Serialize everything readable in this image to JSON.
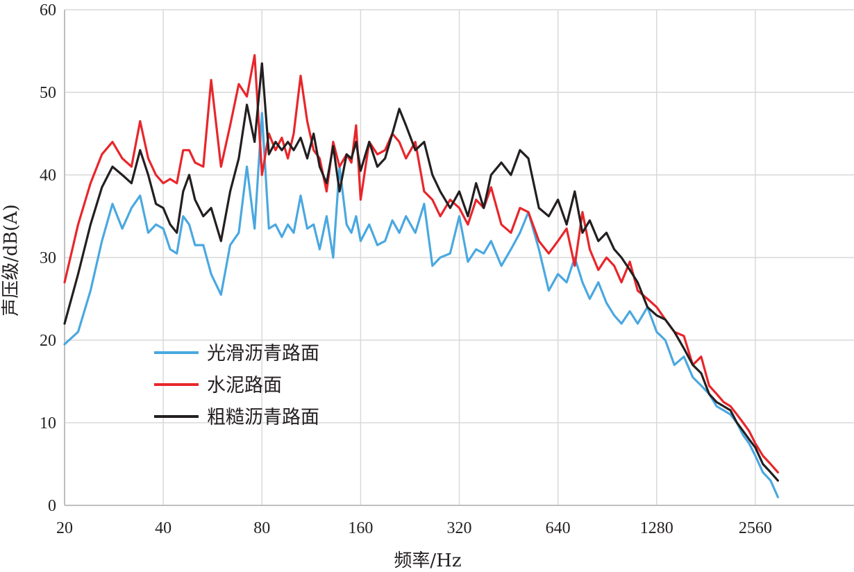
{
  "chart_data": {
    "type": "line",
    "title": "",
    "xlabel": "频率/Hz",
    "ylabel": "声压级/dB(A)",
    "xscale": "log2",
    "xlim": [
      20,
      5120
    ],
    "ylim": [
      0,
      60
    ],
    "x_ticks": [
      20,
      40,
      80,
      160,
      320,
      640,
      1280,
      2560
    ],
    "x_tick_labels": [
      "20",
      "40",
      "80",
      "160",
      "320",
      "640",
      "1280",
      "2560"
    ],
    "y_ticks": [
      0,
      10,
      20,
      30,
      40,
      50,
      60
    ],
    "y_tick_labels": [
      "0",
      "10",
      "20",
      "30",
      "40",
      "50",
      "60"
    ],
    "grid": true,
    "legend_position": "lower-left",
    "series": [
      {
        "name": "光滑沥青路面",
        "color": "#4aa8e0",
        "x": [
          20,
          22,
          24,
          26,
          28,
          30,
          32,
          34,
          36,
          38,
          40,
          42,
          44,
          46,
          48,
          50,
          53,
          56,
          60,
          64,
          68,
          72,
          76,
          80,
          84,
          88,
          92,
          96,
          100,
          105,
          110,
          115,
          120,
          126,
          132,
          138,
          145,
          150,
          155,
          160,
          170,
          180,
          190,
          200,
          210,
          220,
          235,
          250,
          265,
          280,
          300,
          320,
          340,
          360,
          380,
          400,
          430,
          460,
          490,
          520,
          560,
          600,
          640,
          680,
          720,
          760,
          800,
          850,
          900,
          950,
          1000,
          1060,
          1120,
          1200,
          1280,
          1360,
          1450,
          1550,
          1650,
          1750,
          1850,
          1950,
          2050,
          2150,
          2250,
          2350,
          2450,
          2560,
          2700,
          2850,
          3000
        ],
        "y": [
          19.5,
          21,
          26,
          32,
          36.5,
          33.5,
          36,
          37.5,
          33,
          34,
          33.5,
          31,
          30.5,
          35,
          34,
          31.5,
          31.5,
          28,
          25.5,
          31.5,
          33,
          41,
          33.5,
          47.5,
          33.5,
          34,
          32.5,
          34,
          33,
          37.5,
          33.5,
          34,
          31,
          35,
          30,
          41,
          34,
          33,
          35,
          32,
          34,
          31.5,
          32,
          34.5,
          33,
          35,
          33,
          36.5,
          29,
          30,
          30.5,
          35,
          29.5,
          31,
          30.5,
          32,
          29,
          31,
          33,
          35.5,
          31,
          26,
          28,
          27,
          30,
          27,
          25,
          27,
          24.5,
          23,
          22,
          23.5,
          22,
          24,
          21,
          20,
          17,
          18,
          15.5,
          14.5,
          13.5,
          12,
          11.5,
          11,
          10,
          8.5,
          7.5,
          6,
          4,
          3,
          1
        ]
      },
      {
        "name": "水泥路面",
        "color": "#e8262b",
        "x": [
          20,
          22,
          24,
          26,
          28,
          30,
          32,
          34,
          36,
          38,
          40,
          42,
          44,
          46,
          48,
          50,
          53,
          56,
          60,
          64,
          68,
          72,
          76,
          80,
          84,
          88,
          92,
          96,
          100,
          105,
          110,
          115,
          120,
          126,
          132,
          138,
          145,
          150,
          155,
          160,
          170,
          180,
          190,
          200,
          210,
          220,
          235,
          250,
          265,
          280,
          300,
          320,
          340,
          360,
          380,
          400,
          430,
          460,
          490,
          520,
          560,
          600,
          640,
          680,
          720,
          760,
          800,
          850,
          900,
          950,
          1000,
          1060,
          1120,
          1200,
          1280,
          1360,
          1450,
          1550,
          1650,
          1750,
          1850,
          1950,
          2050,
          2150,
          2250,
          2350,
          2450,
          2560,
          2700,
          2850,
          3000
        ],
        "y": [
          27,
          34,
          39,
          42.5,
          44,
          42,
          41,
          46.5,
          42,
          40,
          39,
          39.5,
          39,
          43,
          43,
          41.5,
          41,
          51.5,
          41,
          46,
          51,
          49.5,
          54.5,
          40,
          45,
          43,
          44.5,
          42,
          45,
          52,
          46.5,
          43,
          42,
          38,
          44,
          41,
          42.5,
          41.5,
          46,
          37,
          44,
          42.5,
          43,
          45,
          44,
          42,
          44,
          38,
          37,
          35,
          37,
          36,
          34,
          37,
          36,
          38.5,
          34,
          33,
          36,
          35.5,
          32,
          30.5,
          32,
          33.5,
          29,
          35.5,
          31,
          28.5,
          30,
          29,
          27,
          29.5,
          26,
          25,
          24,
          22.5,
          21,
          20.5,
          17,
          18,
          14.5,
          13.5,
          12.5,
          12,
          11,
          10,
          9,
          7.5,
          6,
          5,
          4
        ]
      },
      {
        "name": "粗糙沥青路面",
        "color": "#231f20",
        "x": [
          20,
          22,
          24,
          26,
          28,
          30,
          32,
          34,
          36,
          38,
          40,
          42,
          44,
          46,
          48,
          50,
          53,
          56,
          60,
          64,
          68,
          72,
          76,
          80,
          84,
          88,
          92,
          96,
          100,
          105,
          110,
          115,
          120,
          126,
          132,
          138,
          145,
          150,
          155,
          160,
          170,
          180,
          190,
          200,
          210,
          220,
          235,
          250,
          265,
          280,
          300,
          320,
          340,
          360,
          380,
          400,
          430,
          460,
          490,
          520,
          560,
          600,
          640,
          680,
          720,
          760,
          800,
          850,
          900,
          950,
          1000,
          1060,
          1120,
          1200,
          1280,
          1360,
          1450,
          1550,
          1650,
          1750,
          1850,
          1950,
          2050,
          2150,
          2250,
          2350,
          2450,
          2560,
          2700,
          2850,
          3000
        ],
        "y": [
          22,
          28,
          34,
          38.5,
          41,
          40,
          39,
          43,
          40,
          36.5,
          36,
          34,
          33,
          38,
          40,
          37,
          35,
          36,
          32,
          38,
          42,
          48.5,
          44,
          53.5,
          42.5,
          44,
          43,
          44,
          43,
          44.5,
          42,
          45,
          41,
          39,
          43.5,
          38,
          42.5,
          42,
          44,
          40.5,
          44,
          41,
          42,
          45,
          48,
          46,
          43,
          44,
          40,
          38,
          36,
          38,
          35,
          39,
          36,
          40,
          41.5,
          40,
          43,
          42,
          36,
          35,
          37,
          34,
          38,
          33,
          34.5,
          32,
          33,
          31,
          30,
          28.5,
          27,
          24,
          23,
          22.5,
          21,
          19,
          17,
          16,
          13.5,
          12.5,
          12,
          11.5,
          10,
          9,
          8,
          7,
          5,
          4,
          3
        ]
      }
    ]
  }
}
